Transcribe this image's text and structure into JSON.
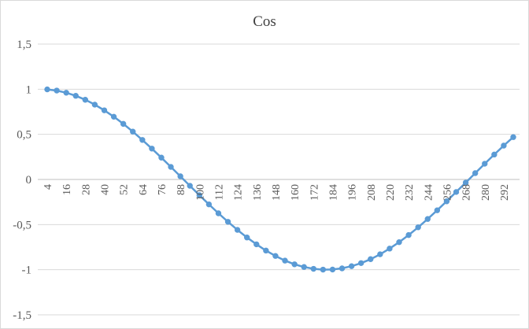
{
  "chart_data": {
    "type": "line",
    "title": "Cos",
    "xlabel": "",
    "ylabel": "",
    "ylim": [
      -1.5,
      1.5
    ],
    "y_ticks": [
      "-1,5",
      "-1",
      "-0,5",
      "0",
      "0,5",
      "1",
      "1,5"
    ],
    "y_tick_values": [
      -1.5,
      -1,
      -0.5,
      0,
      0.5,
      1,
      1.5
    ],
    "x_tick_labels": [
      "4",
      "16",
      "28",
      "40",
      "52",
      "64",
      "76",
      "88",
      "100",
      "112",
      "124",
      "136",
      "148",
      "160",
      "172",
      "184",
      "196",
      "208",
      "220",
      "232",
      "244",
      "256",
      "268",
      "280",
      "292"
    ],
    "grid": true,
    "legend": "none",
    "color": "#5b9bd5",
    "x": [
      4,
      10,
      16,
      22,
      28,
      34,
      40,
      46,
      52,
      58,
      64,
      70,
      76,
      82,
      88,
      94,
      100,
      106,
      112,
      118,
      124,
      130,
      136,
      142,
      148,
      154,
      160,
      166,
      172,
      178,
      184,
      190,
      196,
      202,
      208,
      214,
      220,
      226,
      232,
      238,
      244,
      250,
      256,
      262,
      268,
      274,
      280,
      286,
      292,
      298
    ],
    "series": [
      {
        "values": [
          0.998,
          0.985,
          0.961,
          0.927,
          0.883,
          0.829,
          0.766,
          0.695,
          0.616,
          0.53,
          0.438,
          0.342,
          0.242,
          0.139,
          0.035,
          -0.07,
          -0.174,
          -0.276,
          -0.375,
          -0.469,
          -0.559,
          -0.643,
          -0.719,
          -0.788,
          -0.848,
          -0.899,
          -0.94,
          -0.97,
          -0.99,
          -0.999,
          -0.998,
          -0.985,
          -0.961,
          -0.927,
          -0.883,
          -0.829,
          -0.766,
          -0.695,
          -0.616,
          -0.53,
          -0.438,
          -0.342,
          -0.242,
          -0.139,
          -0.035,
          0.07,
          0.174,
          0.276,
          0.375,
          0.469
        ]
      }
    ]
  }
}
